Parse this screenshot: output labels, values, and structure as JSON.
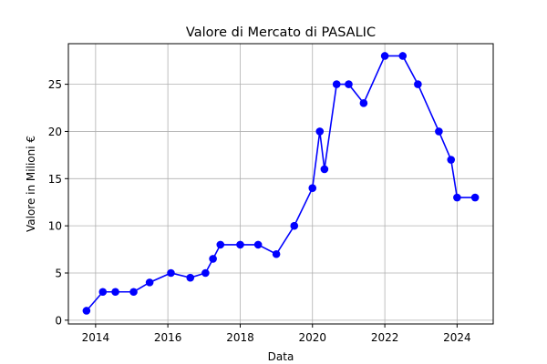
{
  "chart_data": {
    "type": "line",
    "title": "Valore di Mercato di PASALIC",
    "xlabel": "Data",
    "ylabel": "Valore in Milioni €",
    "xlim": [
      "2013-04-01",
      "2024-12-31"
    ],
    "ylim": [
      -0.4,
      29.3
    ],
    "x_ticks": [
      "2014",
      "2016",
      "2018",
      "2020",
      "2022",
      "2024"
    ],
    "y_ticks": [
      0,
      5,
      10,
      15,
      20,
      25
    ],
    "grid": true,
    "line_color": "#0000ff",
    "marker_color": "#0000ff",
    "series": [
      {
        "x": [
          "2013-10-01",
          "2014-03-15",
          "2014-07-20",
          "2015-01-20",
          "2015-07-01",
          "2016-02-01",
          "2016-08-15",
          "2017-01-15",
          "2017-04-01",
          "2017-06-15",
          "2018-01-01",
          "2018-07-01",
          "2019-01-01",
          "2019-07-01",
          "2020-01-01",
          "2020-03-15",
          "2020-05-01",
          "2020-09-01",
          "2021-01-01",
          "2021-06-01",
          "2022-01-01",
          "2022-07-01",
          "2022-12-01",
          "2023-07-01",
          "2023-11-01",
          "2024-01-01",
          "2024-07-01"
        ],
        "values": [
          1,
          3,
          3,
          3,
          4,
          5,
          4.5,
          5,
          6.5,
          8,
          8,
          8,
          7,
          10,
          14,
          20,
          16,
          25,
          25,
          23,
          28,
          28,
          25,
          20,
          17,
          13,
          13
        ]
      }
    ]
  }
}
